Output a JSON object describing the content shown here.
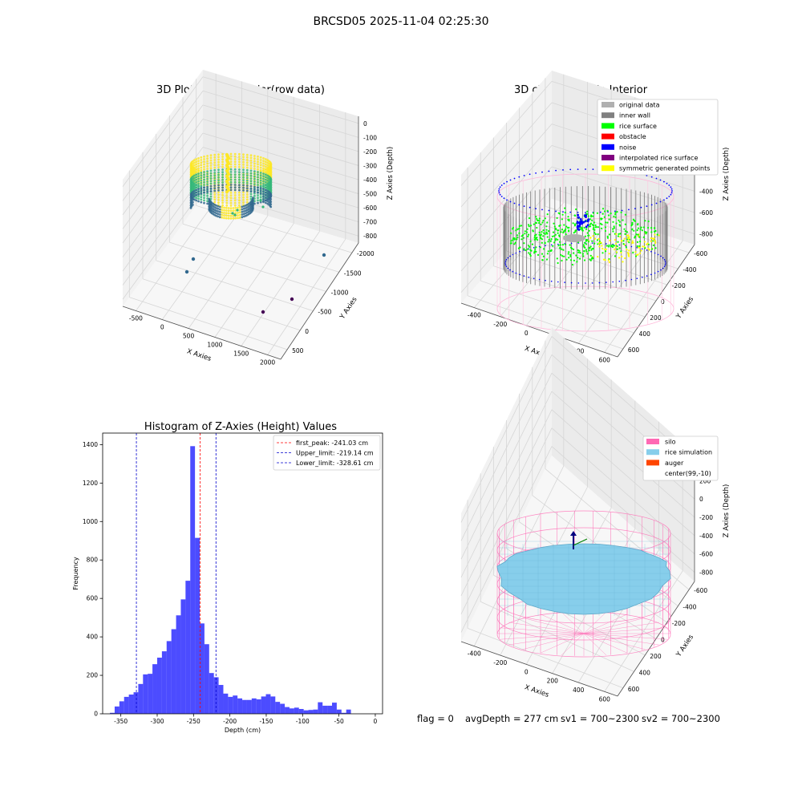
{
  "figure": {
    "suptitle": "BRCSD05 2025-11-04 02:25:30",
    "status_flag": "flag = 0",
    "status_avg": "avgDepth = 277 cm",
    "status_sv1": "sv1 = 700~2300",
    "status_sv2": "sv2 = 700~2300"
  },
  "chart_data": [
    {
      "id": "raw",
      "type": "scatter3d",
      "title": "3D Plot of Silo Interior(row data)",
      "xlabel": "X Axies",
      "ylabel": "Y Axies",
      "zlabel": "Z Axies (Depth)",
      "xticks": [
        -500,
        0,
        500,
        1000,
        1500,
        2000
      ],
      "yticks": [
        500,
        0,
        -500,
        -1000,
        -1500,
        -2000
      ],
      "zticks": [
        0,
        -100,
        -200,
        -300,
        -400,
        -500,
        -600,
        -700,
        -800
      ],
      "colormap": [
        "#440154",
        "#31688e",
        "#35b779",
        "#fde725"
      ]
    },
    {
      "id": "classify",
      "type": "scatter3d",
      "title": "3D classify of Silo Interior",
      "xlabel": "X Axies",
      "ylabel": "Y Axies",
      "zlabel": "Z Axies (Depth)",
      "xticks": [
        -400,
        -200,
        0,
        200,
        400,
        600
      ],
      "yticks": [
        600,
        400,
        200,
        0,
        -200,
        -400,
        -600
      ],
      "zticks": [
        200,
        0,
        -200,
        -400,
        -600,
        -800
      ],
      "legend": [
        {
          "label": "original data",
          "color": "#b0b0b0"
        },
        {
          "label": "inner wall",
          "color": "#808080"
        },
        {
          "label": "rice surface",
          "color": "#00ff00"
        },
        {
          "label": "obstacle",
          "color": "#ff0000"
        },
        {
          "label": "noise",
          "color": "#0000ff"
        },
        {
          "label": "interpolated rice surface",
          "color": "#800080"
        },
        {
          "label": "symmetric generated points",
          "color": "#ffff00"
        }
      ],
      "legend_loc": "upper right"
    },
    {
      "id": "hist",
      "type": "bar",
      "title": "Histogram of Z-Axies (Height) Values",
      "xlabel": "Depth (cm)",
      "ylabel": "Frequency",
      "xlim": [
        -375,
        10
      ],
      "ylim": [
        0,
        1460
      ],
      "xticks": [
        -350,
        -300,
        -250,
        -200,
        -150,
        -100,
        -50,
        0
      ],
      "yticks": [
        0,
        200,
        400,
        600,
        800,
        1000,
        1200,
        1400
      ],
      "bin_start": -365,
      "bin_width": 6.5,
      "values": [
        5,
        38,
        65,
        88,
        100,
        112,
        155,
        205,
        208,
        258,
        292,
        325,
        378,
        440,
        512,
        595,
        692,
        1392,
        915,
        470,
        362,
        212,
        190,
        150,
        105,
        88,
        95,
        80,
        72,
        72,
        80,
        75,
        90,
        102,
        90,
        62,
        52,
        35,
        28,
        32,
        25,
        18,
        20,
        22,
        60,
        42,
        42,
        58,
        22,
        5,
        22
      ],
      "bar_color": "#0000ff",
      "lines": [
        {
          "label": "first_peak: -241.03 cm",
          "x": -241.03,
          "color": "#ff0000"
        },
        {
          "label": "Upper_limit: -219.14 cm",
          "x": -219.14,
          "color": "#0000cc"
        },
        {
          "label": "Lower_limit: -328.61 cm",
          "x": -328.61,
          "color": "#0000cc"
        }
      ],
      "legend_loc": "upper right"
    },
    {
      "id": "simulation",
      "type": "surface3d",
      "title": "3D simulation of Silo Interior",
      "xlabel": "X Axies",
      "ylabel": "Y Axies",
      "zlabel": "Z Axies (Depth)",
      "xticks": [
        -400,
        -200,
        0,
        200,
        400,
        600
      ],
      "yticks": [
        600,
        400,
        200,
        0,
        -200,
        -400,
        -600
      ],
      "zticks": [
        400,
        200,
        0,
        -200,
        -400,
        -600,
        -800
      ],
      "legend": [
        {
          "label": "silo",
          "color": "#ff69b4"
        },
        {
          "label": "rice simulation",
          "color": "#87ceeb"
        },
        {
          "label": "auger",
          "color": "#ff4500"
        },
        {
          "label": "center(99,-10)",
          "color": ""
        }
      ],
      "legend_loc": "upper right"
    }
  ]
}
